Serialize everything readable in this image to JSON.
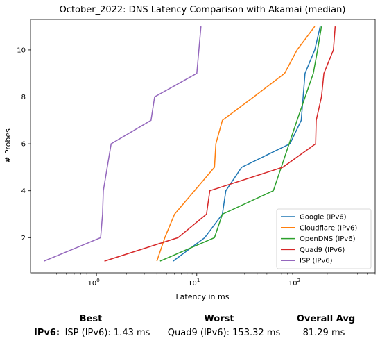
{
  "chart_data": {
    "type": "line",
    "title": "October_2022: DNS Latency Comparison with Akamai (median)",
    "xlabel": "Latency in ms",
    "ylabel": "# Probes",
    "xscale": "log",
    "xlim": [
      0.22,
      600
    ],
    "ylim": [
      0.5,
      11.3
    ],
    "x_ticks": [
      {
        "value": 1,
        "label": "10^0"
      },
      {
        "value": 10,
        "label": "10^1"
      },
      {
        "value": 100,
        "label": "10^2"
      }
    ],
    "y_ticks": [
      2,
      4,
      6,
      8,
      10
    ],
    "legend_position": "bottom-right",
    "grid": false,
    "series": [
      {
        "name": "Google (IPv6)",
        "color": "#1f77b4",
        "points": [
          [
            5.8,
            1
          ],
          [
            12,
            2
          ],
          [
            18,
            3
          ],
          [
            19.5,
            4
          ],
          [
            28,
            5
          ],
          [
            85,
            6
          ],
          [
            110,
            7
          ],
          [
            120,
            9
          ],
          [
            150,
            10
          ],
          [
            170,
            11
          ]
        ]
      },
      {
        "name": "Cloudflare (IPv6)",
        "color": "#ff7f0e",
        "points": [
          [
            4,
            1
          ],
          [
            4.8,
            2
          ],
          [
            6,
            3
          ],
          [
            15,
            5
          ],
          [
            15.5,
            6
          ],
          [
            18,
            7
          ],
          [
            37,
            8
          ],
          [
            75,
            9
          ],
          [
            100,
            10
          ],
          [
            150,
            11
          ]
        ]
      },
      {
        "name": "OpenDNS (IPv6)",
        "color": "#2ca02c",
        "points": [
          [
            4.3,
            1
          ],
          [
            15,
            2
          ],
          [
            18,
            3
          ],
          [
            58,
            4
          ],
          [
            100,
            7
          ],
          [
            145,
            9
          ],
          [
            160,
            10
          ],
          [
            175,
            11
          ]
        ]
      },
      {
        "name": "Quad9 (IPv6)",
        "color": "#d62728",
        "points": [
          [
            1.2,
            1
          ],
          [
            6.5,
            2
          ],
          [
            12.5,
            3
          ],
          [
            13.5,
            4
          ],
          [
            72,
            5
          ],
          [
            153,
            6
          ],
          [
            155,
            7
          ],
          [
            175,
            8
          ],
          [
            185,
            9
          ],
          [
            230,
            10
          ],
          [
            240,
            11
          ]
        ]
      },
      {
        "name": "ISP (IPv6)",
        "color": "#9467bd",
        "points": [
          [
            0.3,
            1
          ],
          [
            1.1,
            2
          ],
          [
            1.15,
            3
          ],
          [
            1.17,
            4
          ],
          [
            1.4,
            6
          ],
          [
            3.5,
            7
          ],
          [
            3.8,
            8
          ],
          [
            10,
            9
          ],
          [
            10.5,
            10
          ],
          [
            11,
            11
          ]
        ]
      }
    ]
  },
  "summary": {
    "headers": {
      "best": "Best",
      "worst": "Worst",
      "avg": "Overall Avg"
    },
    "row_label": "IPv6",
    "row_colon": ":",
    "best": "ISP (IPv6): 1.43 ms",
    "worst": "Quad9 (IPv6): 153.32 ms",
    "avg": "81.29 ms"
  }
}
